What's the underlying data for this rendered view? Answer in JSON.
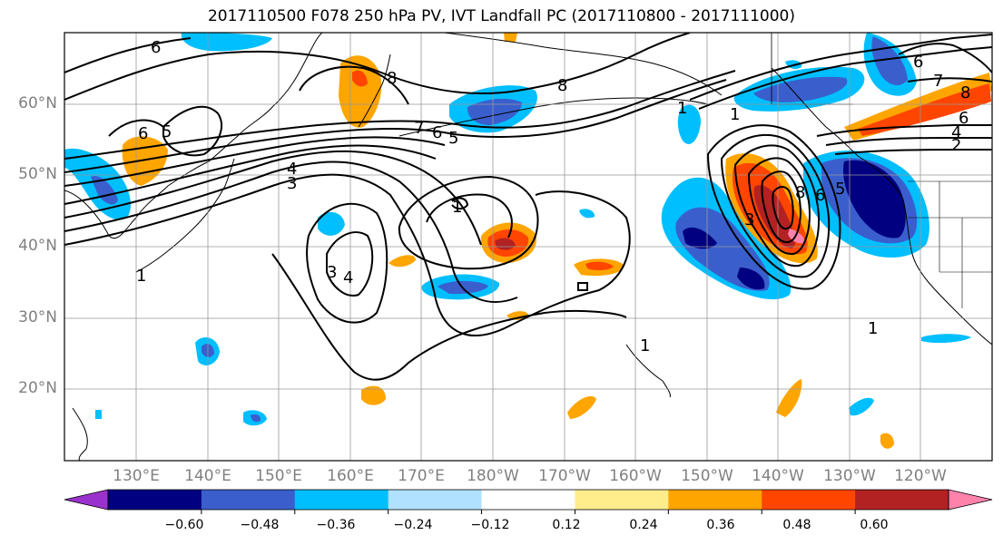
{
  "title": "2017110500 F078 250 hPa PV, IVT Landfall PC (2017110800 - 2017111000)",
  "map": {
    "projection": "PlateCarree",
    "lat_labels": [
      "60°N",
      "50°N",
      "40°N",
      "30°N",
      "20°N"
    ],
    "lon_labels": [
      "130°E",
      "140°E",
      "150°E",
      "160°E",
      "170°E",
      "180°W",
      "170°W",
      "160°W",
      "150°W",
      "140°W",
      "130°W",
      "120°W"
    ],
    "contour_labels": [
      "6",
      "8",
      "6",
      "5",
      "4",
      "3",
      "1",
      "8",
      "7",
      "6",
      "5",
      "3",
      "4",
      "1",
      "2",
      "4",
      "6",
      "7",
      "8",
      "1",
      "8",
      "6",
      "5",
      "3",
      "6",
      "1",
      "1",
      "1"
    ]
  },
  "colorbar": {
    "ticks": [
      "−0.60",
      "−0.48",
      "−0.36",
      "−0.24",
      "−0.12",
      "0.12",
      "0.24",
      "0.36",
      "0.48",
      "0.60"
    ],
    "colors": [
      "#9932cc",
      "#000080",
      "#3a5fcd",
      "#00bfff",
      "#b0e2ff",
      "#ffffff",
      "#ffec8b",
      "#ffa500",
      "#ff4500",
      "#b22222",
      "#ff82ab"
    ]
  }
}
